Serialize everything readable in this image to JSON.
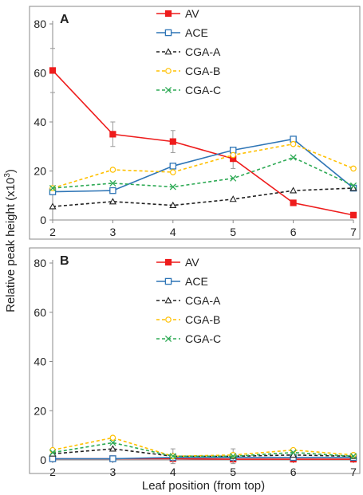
{
  "figure": {
    "ylabel_main": "Relative peak height  (x10",
    "ylabel_sup": "3",
    "ylabel_close": ")",
    "xlabel": "Leaf position (from top)"
  },
  "legend_entries": [
    {
      "name": "AV",
      "color": "#ee1c1c",
      "marker": "filled-square",
      "dash": "solid"
    },
    {
      "name": "ACE",
      "color": "#2e75b6",
      "marker": "open-square",
      "dash": "solid"
    },
    {
      "name": "CGA-A",
      "color": "#222222",
      "marker": "open-triangle",
      "dash": "dashed"
    },
    {
      "name": "CGA-B",
      "color": "#ffc000",
      "marker": "open-circle",
      "dash": "dashed"
    },
    {
      "name": "CGA-C",
      "color": "#2eaa55",
      "marker": "x",
      "dash": "dashed"
    }
  ],
  "chart_data": [
    {
      "panel_label": "A",
      "type": "line",
      "x": [
        2,
        3,
        4,
        5,
        6,
        7
      ],
      "xlim": [
        2,
        7
      ],
      "ylim": [
        0,
        80
      ],
      "yticks": [
        0,
        20,
        40,
        60,
        80
      ],
      "xticks": [
        2,
        3,
        4,
        5,
        6,
        7
      ],
      "grid": false,
      "legend_position": "top-center",
      "series": [
        {
          "name": "AV",
          "values": [
            61,
            35,
            32,
            25,
            7,
            2
          ],
          "error": [
            9,
            5,
            4.5,
            4,
            1,
            0.5
          ]
        },
        {
          "name": "ACE",
          "values": [
            11.5,
            12,
            22,
            28.5,
            33,
            13
          ],
          "error": [
            0,
            0,
            0,
            0,
            0,
            0
          ]
        },
        {
          "name": "CGA-A",
          "values": [
            5.5,
            7.5,
            6,
            8.5,
            12,
            13
          ],
          "error": [
            0,
            0,
            0,
            0,
            0,
            0
          ]
        },
        {
          "name": "CGA-B",
          "values": [
            13,
            20.5,
            19.5,
            26.5,
            31,
            21
          ],
          "error": [
            0,
            0,
            0,
            0,
            0,
            0
          ]
        },
        {
          "name": "CGA-C",
          "values": [
            13,
            15,
            13.5,
            17,
            25.5,
            14
          ],
          "error": [
            0,
            0,
            0,
            0,
            0,
            0
          ]
        }
      ]
    },
    {
      "panel_label": "B",
      "type": "line",
      "x": [
        2,
        3,
        4,
        5,
        6,
        7
      ],
      "xlim": [
        2,
        7
      ],
      "ylim": [
        0,
        80
      ],
      "yticks": [
        0,
        20,
        40,
        60,
        80
      ],
      "xticks": [
        2,
        3,
        4,
        5,
        6,
        7
      ],
      "grid": false,
      "legend_position": "top-center",
      "series": [
        {
          "name": "AV",
          "values": [
            0.5,
            0.5,
            0.5,
            0.3,
            0.3,
            0.3
          ],
          "error": [
            0,
            0,
            0,
            0,
            0,
            0
          ]
        },
        {
          "name": "ACE",
          "values": [
            0.5,
            0.5,
            1,
            1,
            1,
            1
          ],
          "error": [
            0,
            0,
            0,
            0,
            0,
            0
          ]
        },
        {
          "name": "CGA-A",
          "values": [
            2.5,
            4.5,
            1.5,
            1.5,
            2,
            1.5
          ],
          "error": [
            0,
            0,
            3,
            3,
            0,
            0
          ]
        },
        {
          "name": "CGA-B",
          "values": [
            4,
            9,
            1.5,
            2,
            4,
            2
          ],
          "error": [
            0,
            0,
            0,
            0,
            0,
            0
          ]
        },
        {
          "name": "CGA-C",
          "values": [
            3,
            7,
            1.5,
            1.5,
            3,
            1.5
          ],
          "error": [
            0,
            0,
            0,
            0,
            0,
            0
          ]
        }
      ]
    }
  ]
}
